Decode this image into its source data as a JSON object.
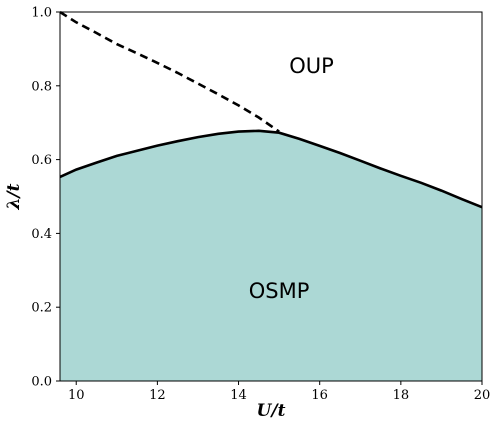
{
  "chart_data": {
    "type": "area",
    "xlabel": "U/t",
    "ylabel": "λ/t",
    "xlim": [
      9.6,
      20
    ],
    "ylim": [
      0.0,
      1.0
    ],
    "xticks": [
      10,
      12,
      14,
      16,
      18,
      20
    ],
    "yticks": [
      0.0,
      0.2,
      0.4,
      0.6,
      0.8,
      1.0
    ],
    "grid": false,
    "fill_color": "#acd8d5",
    "line_color": "#000000",
    "series": [
      {
        "style": "solid",
        "x": [
          9.6,
          10,
          10.5,
          11,
          11.5,
          12,
          12.5,
          13,
          13.5,
          14,
          14.5,
          15,
          15.5,
          16,
          16.5,
          17,
          17.5,
          18,
          18.5,
          19,
          19.5,
          20
        ],
        "y": [
          0.553,
          0.573,
          0.592,
          0.61,
          0.624,
          0.638,
          0.65,
          0.661,
          0.67,
          0.676,
          0.678,
          0.673,
          0.656,
          0.637,
          0.618,
          0.597,
          0.576,
          0.556,
          0.537,
          0.516,
          0.493,
          0.471
        ]
      },
      {
        "style": "dashed",
        "x": [
          9.6,
          10,
          10.5,
          11,
          11.5,
          12,
          12.5,
          13,
          13.5,
          14,
          14.5,
          15
        ],
        "y": [
          1.0,
          0.972,
          0.943,
          0.913,
          0.888,
          0.862,
          0.835,
          0.806,
          0.777,
          0.747,
          0.714,
          0.676
        ]
      }
    ],
    "annotations": [
      {
        "text": "OUP",
        "x": 15.8,
        "y": 0.835
      },
      {
        "text": "OSMP",
        "x": 15.0,
        "y": 0.225
      }
    ]
  }
}
